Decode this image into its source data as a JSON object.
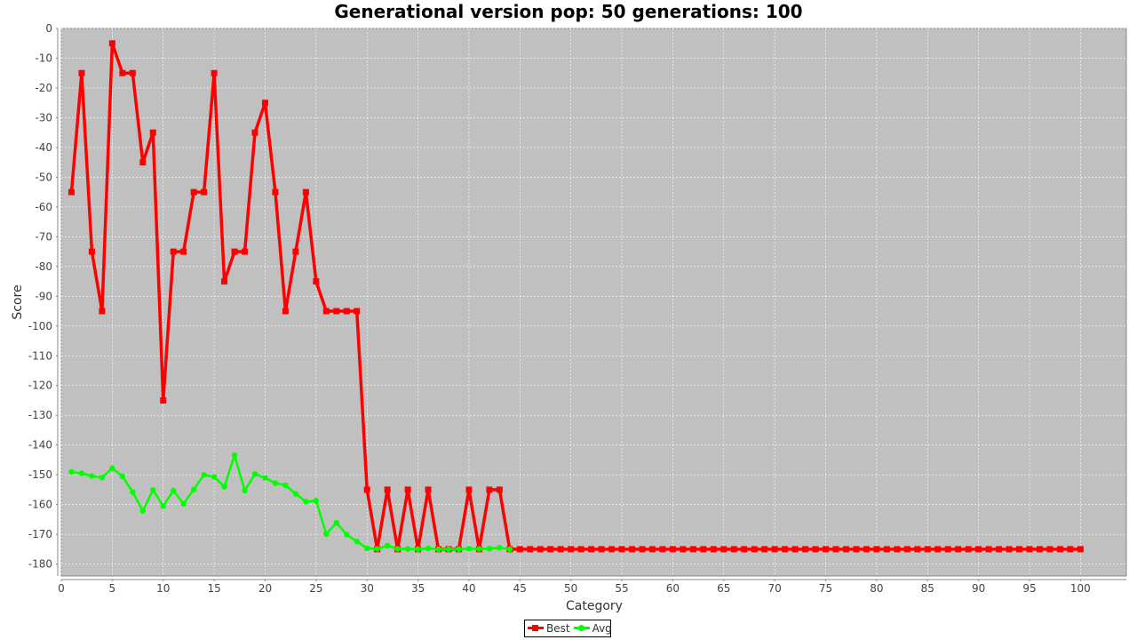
{
  "chart_data": {
    "type": "line",
    "title": "Generational version pop: 50 generations: 100",
    "xlabel": "Category",
    "ylabel": "Score",
    "x_ticks": [
      0,
      5,
      10,
      15,
      20,
      25,
      30,
      35,
      40,
      45,
      50,
      55,
      60,
      65,
      70,
      75,
      80,
      85,
      90,
      95,
      100
    ],
    "y_ticks": [
      0,
      -10,
      -20,
      -30,
      -40,
      -50,
      -60,
      -70,
      -80,
      -90,
      -100,
      -110,
      -120,
      -130,
      -140,
      -150,
      -160,
      -170,
      -180
    ],
    "xlim": [
      0,
      104.5
    ],
    "ylim": [
      -184,
      0
    ],
    "grid": true,
    "legend_position": "bottom",
    "colors": {
      "plot_background": "#c0c0c0",
      "grid": "#ffffff",
      "Best": "#ff0000",
      "Avg": "#00ff00"
    },
    "series": [
      {
        "name": "Best",
        "marker": "square",
        "x": [
          1,
          2,
          3,
          4,
          5,
          6,
          7,
          8,
          9,
          10,
          11,
          12,
          13,
          14,
          15,
          16,
          17,
          18,
          19,
          20,
          21,
          22,
          23,
          24,
          25,
          26,
          27,
          28,
          29,
          30,
          31,
          32,
          33,
          34,
          35,
          36,
          37,
          38,
          39,
          40,
          41,
          42,
          43,
          44,
          45,
          46,
          47,
          48,
          49,
          50,
          51,
          52,
          53,
          54,
          55,
          56,
          57,
          58,
          59,
          60,
          61,
          62,
          63,
          64,
          65,
          66,
          67,
          68,
          69,
          70,
          71,
          72,
          73,
          74,
          75,
          76,
          77,
          78,
          79,
          80,
          81,
          82,
          83,
          84,
          85,
          86,
          87,
          88,
          89,
          90,
          91,
          92,
          93,
          94,
          95,
          96,
          97,
          98,
          99,
          100
        ],
        "values": [
          -55,
          -15,
          -75,
          -95,
          -5,
          -15,
          -15,
          -45,
          -35,
          -125,
          -75,
          -75,
          -55,
          -55,
          -15,
          -85,
          -75,
          -75,
          -35,
          -25,
          -55,
          -95,
          -75,
          -55,
          -85,
          -95,
          -95,
          -95,
          -95,
          -155,
          -175,
          -155,
          -175,
          -155,
          -175,
          -155,
          -175,
          -175,
          -175,
          -155,
          -175,
          -155,
          -155,
          -175,
          -175,
          -175,
          -175,
          -175,
          -175,
          -175,
          -175,
          -175,
          -175,
          -175,
          -175,
          -175,
          -175,
          -175,
          -175,
          -175,
          -175,
          -175,
          -175,
          -175,
          -175,
          -175,
          -175,
          -175,
          -175,
          -175,
          -175,
          -175,
          -175,
          -175,
          -175,
          -175,
          -175,
          -175,
          -175,
          -175,
          -175,
          -175,
          -175,
          -175,
          -175,
          -175,
          -175,
          -175,
          -175,
          -175,
          -175,
          -175,
          -175,
          -175,
          -175,
          -175,
          -175,
          -175,
          -175,
          -175
        ]
      },
      {
        "name": "Avg",
        "marker": "circle",
        "x": [
          1,
          2,
          3,
          4,
          5,
          6,
          7,
          8,
          9,
          10,
          11,
          12,
          13,
          14,
          15,
          16,
          17,
          18,
          19,
          20,
          21,
          22,
          23,
          24,
          25,
          26,
          27,
          28,
          29,
          30,
          31,
          32,
          33,
          34,
          35,
          36,
          37,
          38,
          39,
          40,
          41,
          42,
          43,
          44
        ],
        "values": [
          -149,
          -149.5,
          -150.4,
          -150.9,
          -147.8,
          -150.5,
          -155.8,
          -162.1,
          -155.1,
          -160.5,
          -155.3,
          -159.7,
          -154.9,
          -150,
          -150.7,
          -154,
          -143.4,
          -155.3,
          -149.7,
          -151,
          -152.8,
          -153.5,
          -156.4,
          -159,
          -158.7,
          -169.9,
          -166.1,
          -170.1,
          -172.4,
          -174.7,
          -174.9,
          -173.8,
          -174.9,
          -174.9,
          -175,
          -174.7,
          -175,
          -175,
          -175,
          -174.8,
          -174.9,
          -174.8,
          -174.5,
          -175
        ]
      }
    ]
  }
}
